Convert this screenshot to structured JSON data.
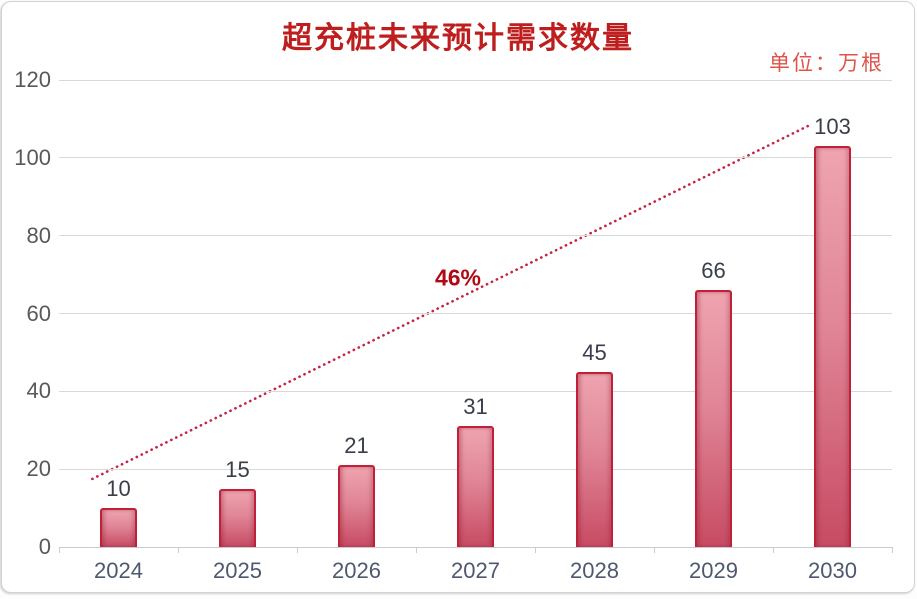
{
  "page": {
    "title_label": "超充桩未来预计需求数量",
    "unit_label": "单位：万根"
  },
  "chart_data": {
    "type": "bar",
    "title": "超充桩未来预计需求数量",
    "unit": "万根",
    "categories": [
      "2024",
      "2025",
      "2026",
      "2027",
      "2028",
      "2029",
      "2030"
    ],
    "values": [
      10,
      15,
      21,
      31,
      45,
      66,
      103
    ],
    "xlabel": "",
    "ylabel": "",
    "ylim": [
      0,
      120
    ],
    "yticks": [
      0,
      20,
      40,
      60,
      80,
      100,
      120
    ],
    "grid": true,
    "legend": "none",
    "trendline": {
      "label": "46%",
      "style": "dotted",
      "start": {
        "x_frac": 0.04,
        "value": 17.5
      },
      "end": {
        "x_frac": 0.904,
        "value": 108.7
      },
      "label_pos": {
        "x_frac": 0.479,
        "value": 69
      }
    }
  },
  "colors": {
    "title": "#bf1e1e",
    "unit": "#df5349",
    "growth_label": "#b00914",
    "trendline": "#c42343",
    "bar_border": "#bf2138",
    "bar_top": "#eea4af",
    "bar_mid": "#e08596",
    "bar_bottom": "#c74b63",
    "value_label": "#393e4a",
    "x_label": "#4e5870",
    "y_label": "#595959",
    "gridline": "#d9d9d9",
    "axis": "#c7ccd4"
  }
}
